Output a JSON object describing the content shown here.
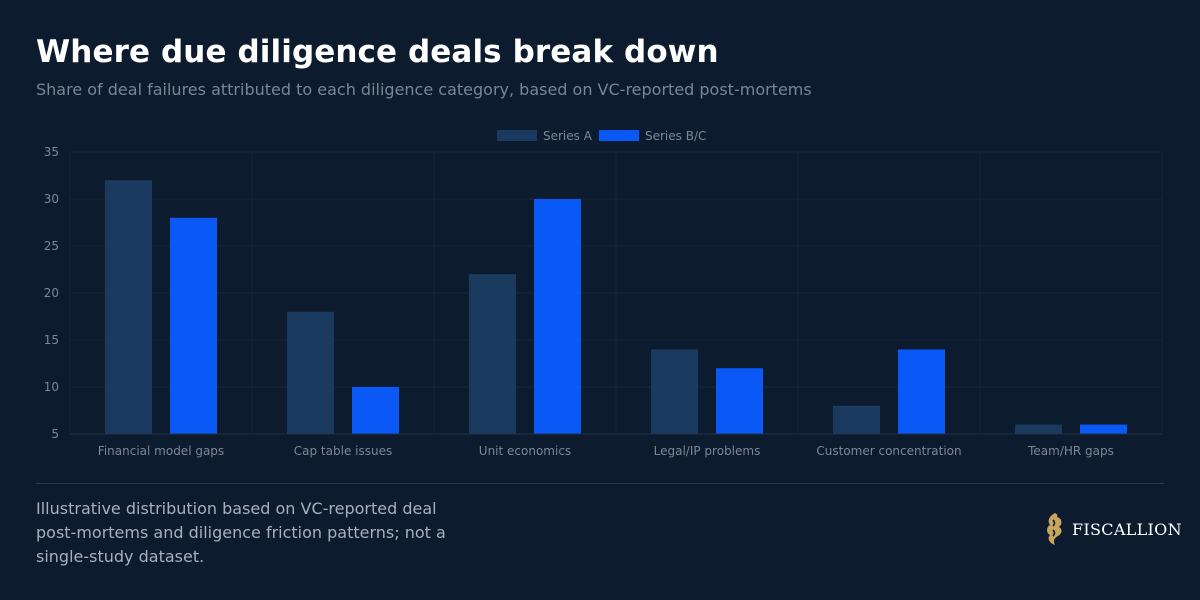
{
  "header": {
    "title": "Where due diligence deals break down",
    "subtitle": "Share of deal failures attributed to each diligence category, based on VC-reported post-mortems"
  },
  "chart_data": {
    "type": "bar",
    "categories": [
      "Financial model gaps",
      "Cap table issues",
      "Unit economics",
      "Legal/IP problems",
      "Customer concentration",
      "Team/HR gaps"
    ],
    "series": [
      {
        "name": "Series A",
        "values": [
          32,
          18,
          22,
          14,
          8,
          6
        ],
        "color": "#1b3a60"
      },
      {
        "name": "Series B/C",
        "values": [
          28,
          10,
          30,
          12,
          14,
          6
        ],
        "color": "#0a58f5"
      }
    ],
    "yticks": [
      "5",
      "10",
      "15",
      "20",
      "25",
      "30",
      "35"
    ],
    "ylim": [
      5,
      35
    ],
    "grid": true,
    "legend": "top-center"
  },
  "footer": {
    "note": "Illustrative distribution based on VC-reported deal post-mortems and diligence friction patterns; not a single-study dataset.",
    "brand": "FISCALLION",
    "brand_icon": "lion-logo-icon"
  },
  "colors": {
    "background": "#0d1b2e",
    "grid": "#15253a",
    "tick_text": "#7d8796",
    "logo_gold": "#c9a45c"
  }
}
